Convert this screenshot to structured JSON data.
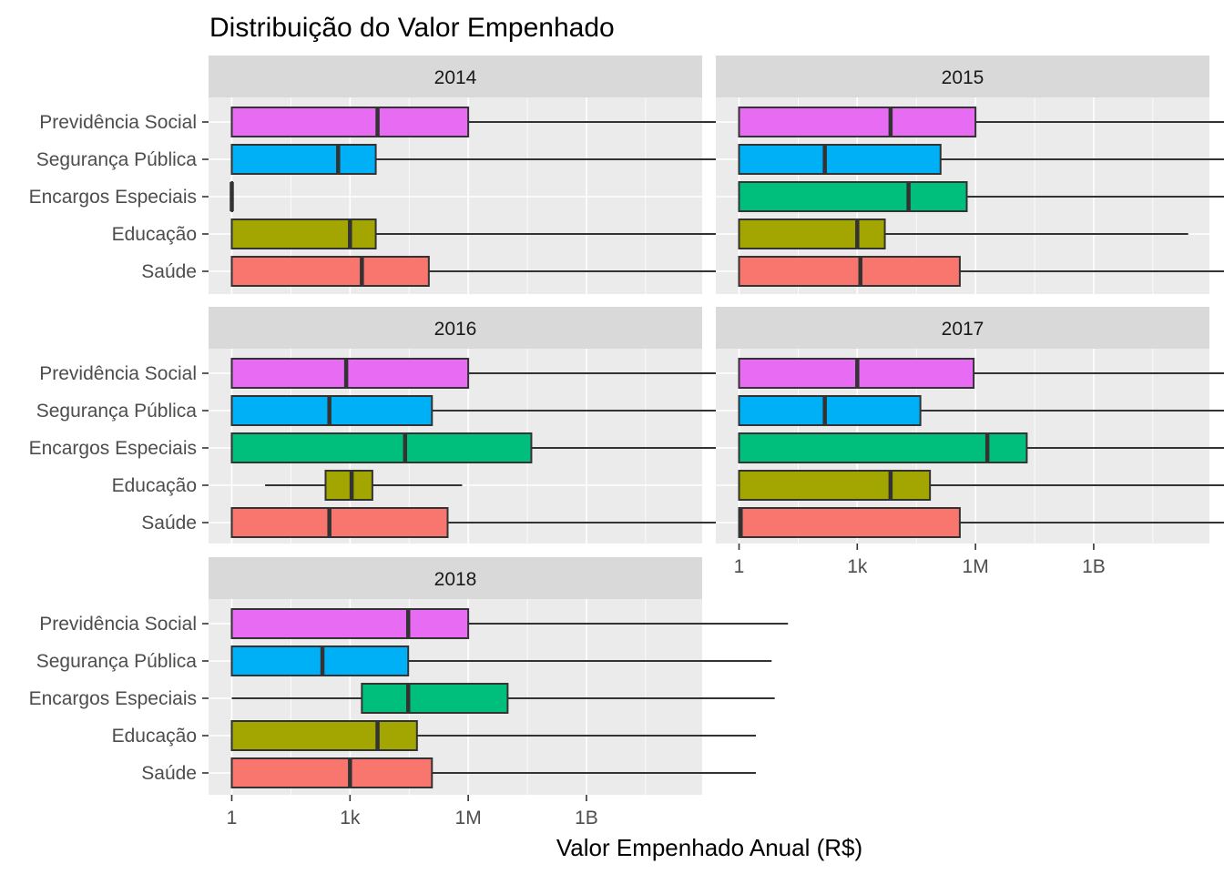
{
  "chart_data": {
    "type": "boxplot",
    "title": "Distribuição do Valor Empenhado",
    "xlabel": "Valor Empenhado Anual (R$)",
    "ylabel": "",
    "x_scale": "log10",
    "x_ticks": [
      {
        "value": 1,
        "label": "1"
      },
      {
        "value": 1000,
        "label": "1k"
      },
      {
        "value": 1000000,
        "label": "1M"
      },
      {
        "value": 1000000000,
        "label": "1B"
      }
    ],
    "categories": [
      "Previdência Social",
      "Segurança Pública",
      "Encargos Especiais",
      "Educação",
      "Saúde"
    ],
    "colors": {
      "Previdência Social": "#E76BF3",
      "Segurança Pública": "#00B0F6",
      "Encargos Especiais": "#00BF7D",
      "Educação": "#A3A500",
      "Saúde": "#F8766D"
    },
    "facets": [
      {
        "label": "2014",
        "boxes": [
          {
            "category": "Previdência Social",
            "min": 1,
            "q1": 1,
            "median": 5000,
            "q3": 1000000,
            "max": 80000000000000.0
          },
          {
            "category": "Segurança Pública",
            "min": 1,
            "q1": 1,
            "median": 500,
            "q3": 4500,
            "max": 2300000000000.0
          },
          {
            "category": "Encargos Especiais",
            "min": 1,
            "q1": 1,
            "median": 1,
            "q3": 1,
            "max": 1
          },
          {
            "category": "Educação",
            "min": 1,
            "q1": 1,
            "median": 1000,
            "q3": 4500,
            "max": 2000000000000.0
          },
          {
            "category": "Saúde",
            "min": 1,
            "q1": 1,
            "median": 2000,
            "q3": 100000,
            "max": 7000000000000.0
          }
        ]
      },
      {
        "label": "2015",
        "boxes": [
          {
            "category": "Previdência Social",
            "min": 1,
            "q1": 1,
            "median": 7000,
            "q3": 1000000,
            "max": 100000000000000.0
          },
          {
            "category": "Segurança Pública",
            "min": 1,
            "q1": 1,
            "median": 150,
            "q3": 130000,
            "max": 35000000000000.0
          },
          {
            "category": "Encargos Especiais",
            "min": 1,
            "q1": 1,
            "median": 20000,
            "q3": 600000,
            "max": 110000000000000.0
          },
          {
            "category": "Educação",
            "min": 1,
            "q1": 1,
            "median": 1000,
            "q3": 5000,
            "max": 250000000000.0
          },
          {
            "category": "Saúde",
            "min": 1,
            "q1": 1,
            "median": 1200,
            "q3": 400000,
            "max": 10000000000000.0
          }
        ]
      },
      {
        "label": "2016",
        "boxes": [
          {
            "category": "Previdência Social",
            "min": 1,
            "q1": 1,
            "median": 800,
            "q3": 1000000,
            "max": 100000000000000.0
          },
          {
            "category": "Segurança Pública",
            "min": 1,
            "q1": 1,
            "median": 300,
            "q3": 120000,
            "max": 4000000000000.0
          },
          {
            "category": "Encargos Especiais",
            "min": 1,
            "q1": 1,
            "median": 25000,
            "q3": 40000000,
            "max": 60000000000000.0
          },
          {
            "category": "Educação",
            "min": 7,
            "q1": 240,
            "median": 1100,
            "q3": 3700,
            "max": 700000
          },
          {
            "category": "Saúde",
            "min": 1,
            "q1": 1,
            "median": 300,
            "q3": 300000,
            "max": 6000000000000.0
          }
        ]
      },
      {
        "label": "2017",
        "boxes": [
          {
            "category": "Previdência Social",
            "min": 1,
            "q1": 1,
            "median": 1000,
            "q3": 900000,
            "max": 150000000000000.0
          },
          {
            "category": "Segurança Pública",
            "min": 1,
            "q1": 1,
            "median": 150,
            "q3": 40000,
            "max": 35000000000000.0
          },
          {
            "category": "Encargos Especiais",
            "min": 1,
            "q1": 1,
            "median": 2000000,
            "q3": 20000000,
            "max": 50000000000000.0
          },
          {
            "category": "Educação",
            "min": 1,
            "q1": 1,
            "median": 7000,
            "q3": 70000,
            "max": 20000000000000.0
          },
          {
            "category": "Saúde",
            "min": 1,
            "q1": 1,
            "median": 1.1,
            "q3": 400000,
            "max": 12000000000000.0
          }
        ]
      },
      {
        "label": "2018",
        "boxes": [
          {
            "category": "Previdência Social",
            "min": 1,
            "q1": 1,
            "median": 30000,
            "q3": 1000000,
            "max": 130000000000000.0
          },
          {
            "category": "Segurança Pública",
            "min": 1,
            "q1": 1,
            "median": 200,
            "q3": 30000,
            "max": 50000000000000.0
          },
          {
            "category": "Encargos Especiais",
            "min": 1,
            "q1": 2000,
            "median": 30000,
            "q3": 10000000,
            "max": 60000000000000.0
          },
          {
            "category": "Educação",
            "min": 1,
            "q1": 1,
            "median": 5000,
            "q3": 50000,
            "max": 20000000000000.0
          },
          {
            "category": "Saúde",
            "min": 1,
            "q1": 1,
            "median": 1000,
            "q3": 120000,
            "max": 20000000000000.0
          }
        ]
      }
    ]
  }
}
